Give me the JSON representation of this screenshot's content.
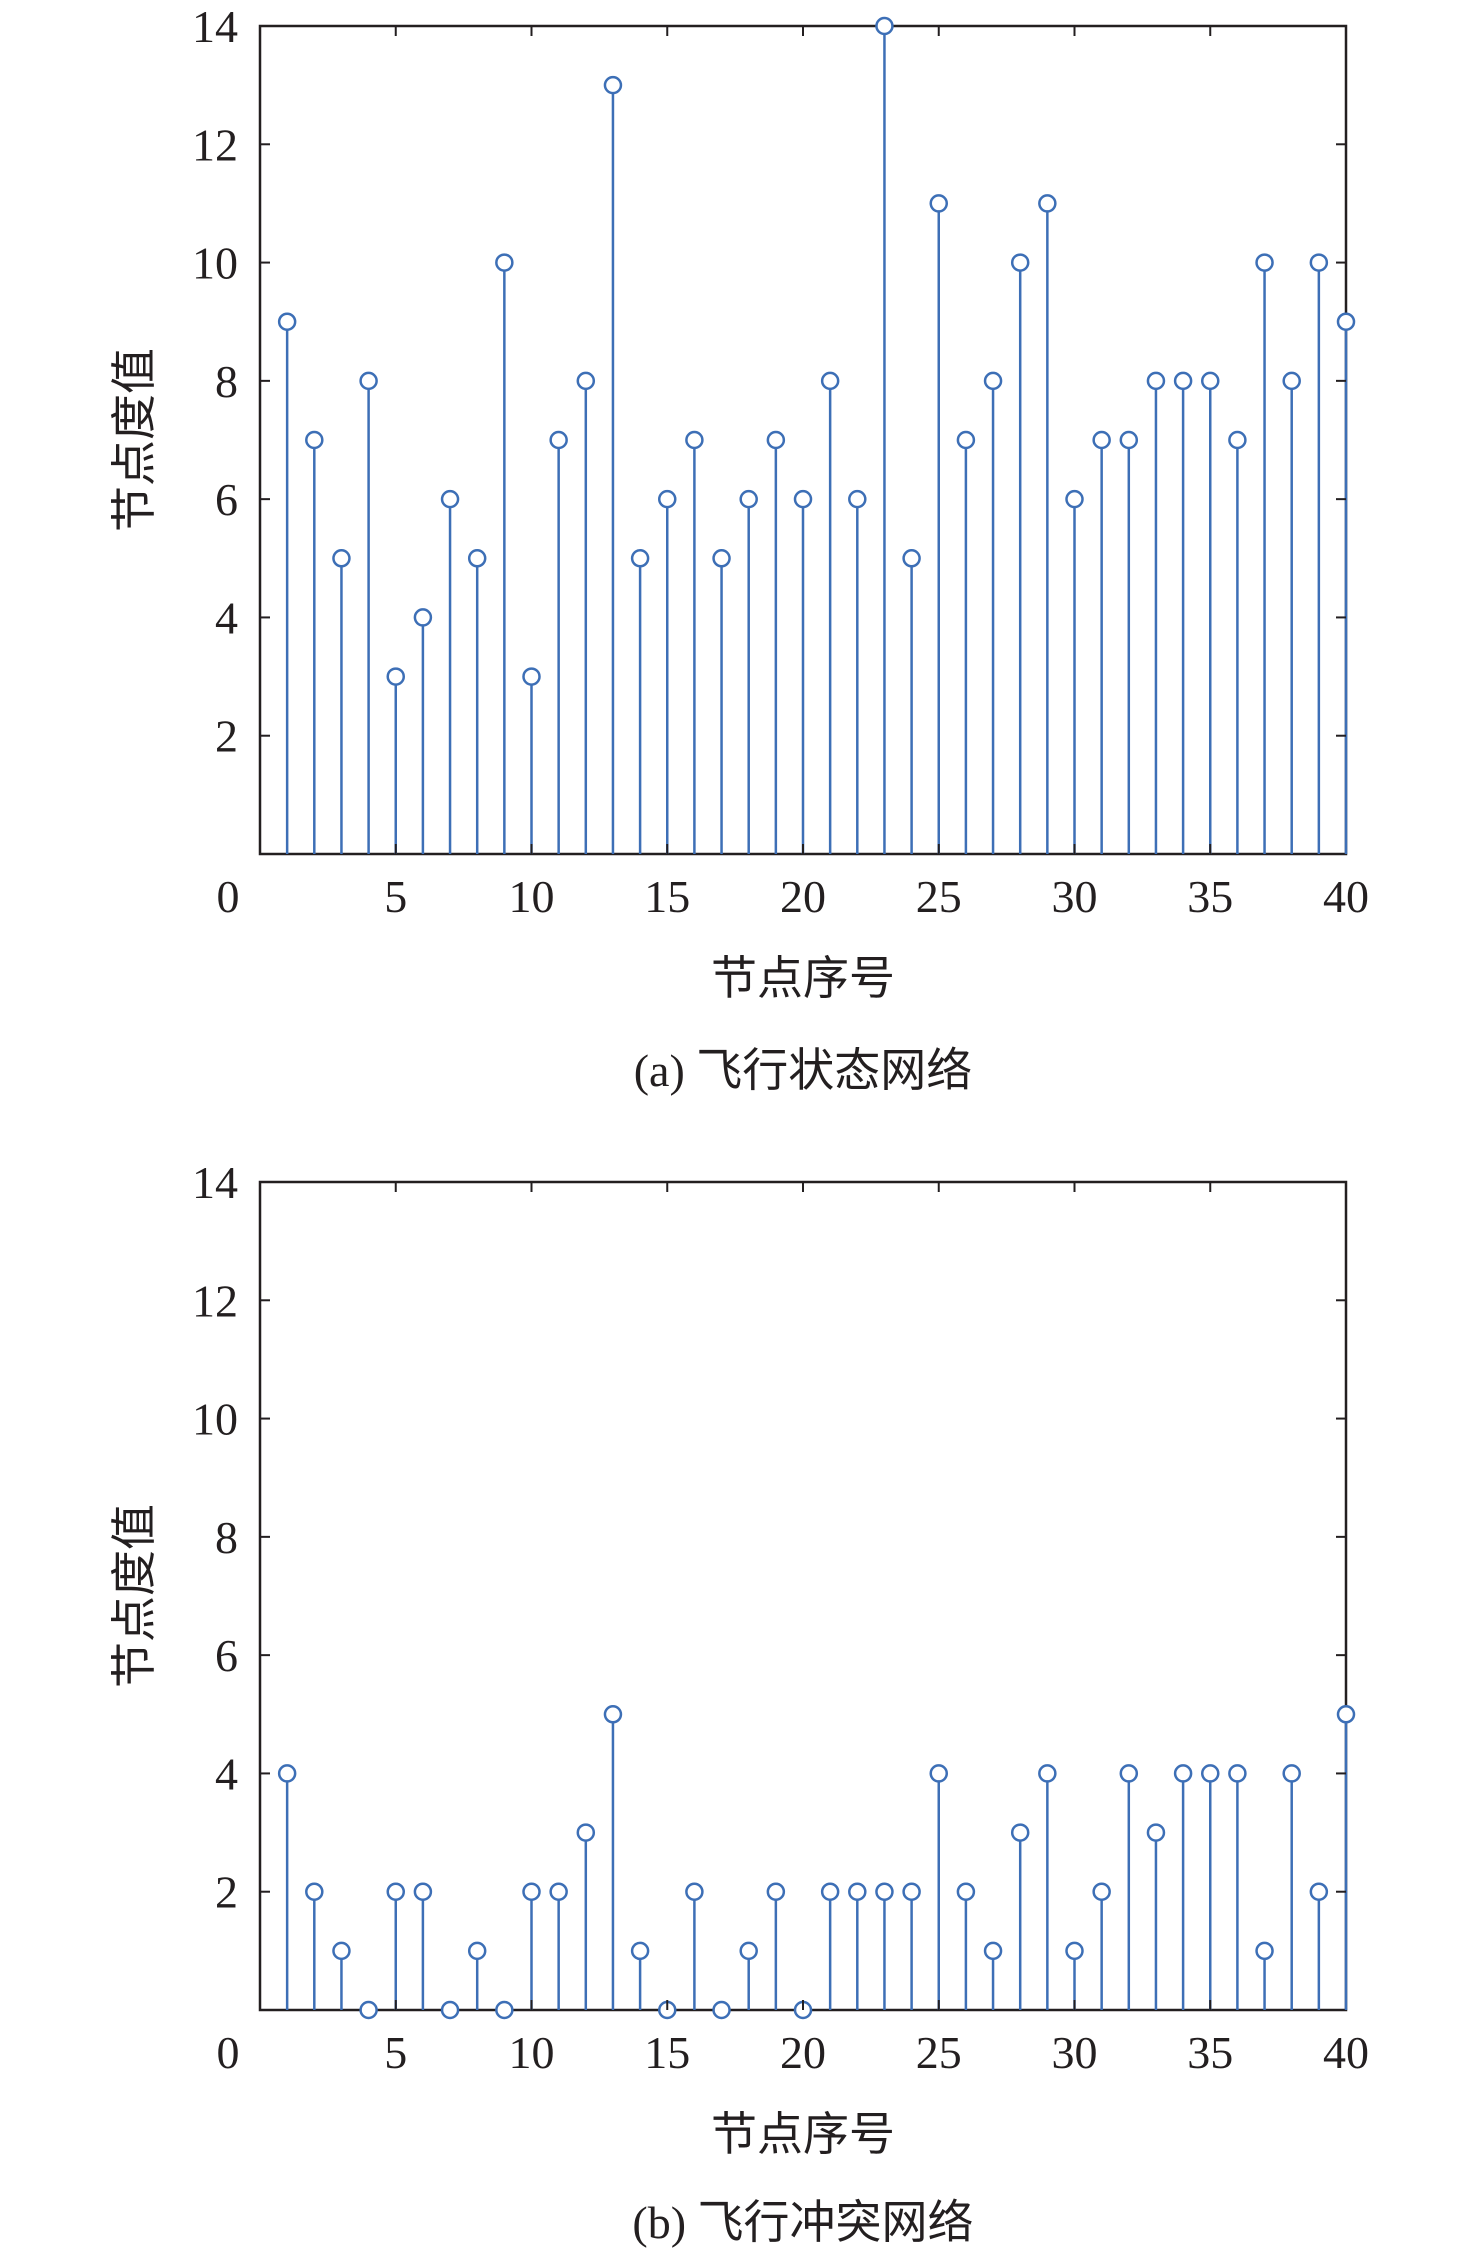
{
  "chart_data": [
    {
      "type": "stem",
      "panel": "a",
      "caption": "(a) 飞行状态网络",
      "xlabel": "节点序号",
      "ylabel": "节点度值",
      "xlim": [
        0,
        40
      ],
      "ylim": [
        0,
        14
      ],
      "xticks": [
        0,
        5,
        10,
        15,
        20,
        25,
        30,
        35,
        40
      ],
      "yticks": [
        2,
        4,
        6,
        8,
        10,
        12,
        14
      ],
      "x": [
        1,
        2,
        3,
        4,
        5,
        6,
        7,
        8,
        9,
        10,
        11,
        12,
        13,
        14,
        15,
        16,
        17,
        18,
        19,
        20,
        21,
        22,
        23,
        24,
        25,
        26,
        27,
        28,
        29,
        30,
        31,
        32,
        33,
        34,
        35,
        36,
        37,
        38,
        39,
        40
      ],
      "values": [
        9,
        7,
        5,
        8,
        3,
        4,
        6,
        5,
        10,
        3,
        7,
        8,
        13,
        5,
        6,
        7,
        5,
        6,
        7,
        6,
        8,
        6,
        14,
        5,
        11,
        7,
        8,
        10,
        11,
        6,
        7,
        7,
        8,
        8,
        8,
        7,
        10,
        8,
        10,
        9
      ],
      "color": "#3d6fb6",
      "grid": false
    },
    {
      "type": "stem",
      "panel": "b",
      "caption": "(b) 飞行冲突网络",
      "xlabel": "节点序号",
      "ylabel": "节点度值",
      "xlim": [
        0,
        40
      ],
      "ylim": [
        0,
        14
      ],
      "xticks": [
        0,
        5,
        10,
        15,
        20,
        25,
        30,
        35,
        40
      ],
      "yticks": [
        2,
        4,
        6,
        8,
        10,
        12,
        14
      ],
      "x": [
        1,
        2,
        3,
        4,
        5,
        6,
        7,
        8,
        9,
        10,
        11,
        12,
        13,
        14,
        15,
        16,
        17,
        18,
        19,
        20,
        21,
        22,
        23,
        24,
        25,
        26,
        27,
        28,
        29,
        30,
        31,
        32,
        33,
        34,
        35,
        36,
        37,
        38,
        39,
        40
      ],
      "values": [
        4,
        2,
        1,
        0,
        2,
        2,
        0,
        1,
        0,
        2,
        2,
        3,
        5,
        1,
        0,
        2,
        0,
        1,
        2,
        0,
        2,
        2,
        2,
        2,
        4,
        2,
        1,
        3,
        4,
        1,
        2,
        4,
        3,
        4,
        4,
        4,
        1,
        4,
        2,
        5
      ],
      "color": "#3d6fb6",
      "grid": false
    }
  ]
}
